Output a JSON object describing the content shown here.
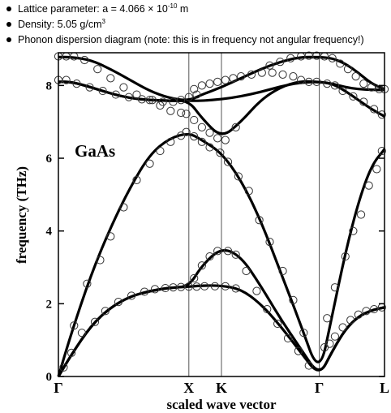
{
  "notes": [
    {
      "text": "Lattice parameter: a = 4.066 × 10",
      "sup": "-10",
      "after": " m"
    },
    {
      "text": "Density: 5.05 g/cm",
      "sup": "3",
      "after": ""
    },
    {
      "text": "Phonon dispersion diagram (note: this is in frequency not angular frequency!)",
      "sup": "",
      "after": ""
    }
  ],
  "chart_data": {
    "type": "line",
    "annotation": "GaAs",
    "xlabel": "scaled wave vector",
    "ylabel": "frequency (THz)",
    "ylim": [
      0,
      8.9
    ],
    "xlim": [
      0,
      2.5
    ],
    "x_ticks": [
      {
        "label": "Γ",
        "x": 0
      },
      {
        "label": "X",
        "x": 1.0
      },
      {
        "label": "K",
        "x": 1.25
      },
      {
        "label": "Γ",
        "x": 2.0
      },
      {
        "label": "L",
        "x": 2.5
      }
    ],
    "y_ticks": [
      0,
      2,
      4,
      6,
      8
    ],
    "vertical_lines_at": [
      1.0,
      1.25,
      2.0
    ],
    "series": [
      {
        "x": [
          0,
          0.1,
          0.25,
          0.4,
          0.55,
          0.7,
          0.85,
          1.0,
          1.1,
          1.25,
          1.4,
          1.55,
          1.7,
          1.85,
          2.0,
          2.1,
          2.2,
          2.3,
          2.4,
          2.5
        ],
        "values": [
          0,
          0.6,
          1.4,
          1.9,
          2.2,
          2.35,
          2.44,
          2.47,
          2.5,
          2.5,
          2.4,
          2.0,
          1.4,
          0.7,
          0,
          0.7,
          1.3,
          1.65,
          1.82,
          1.9
        ]
      },
      {
        "x": [
          0,
          0.1,
          0.25,
          0.4,
          0.55,
          0.7,
          0.85,
          1.0,
          1.1,
          1.25,
          1.4,
          1.55,
          1.7,
          1.85,
          2.0,
          2.1,
          2.2,
          2.3,
          2.4,
          2.5
        ],
        "values": [
          0,
          0.6,
          1.4,
          1.9,
          2.2,
          2.35,
          2.44,
          2.47,
          3.05,
          3.55,
          3.3,
          2.5,
          1.6,
          0.8,
          0,
          0.7,
          1.3,
          1.65,
          1.82,
          1.9
        ]
      },
      {
        "x": [
          0,
          0.1,
          0.25,
          0.4,
          0.55,
          0.7,
          0.85,
          1.0,
          1.1,
          1.25,
          1.4,
          1.55,
          1.7,
          1.85,
          2.0,
          2.1,
          2.2,
          2.3,
          2.4,
          2.5
        ],
        "values": [
          0,
          1.2,
          2.8,
          4.1,
          5.2,
          6.1,
          6.55,
          6.7,
          6.5,
          6.15,
          5.4,
          4.3,
          2.9,
          1.5,
          0,
          1.7,
          3.4,
          4.8,
          5.8,
          6.25
        ]
      },
      {
        "x": [
          0,
          0.1,
          0.25,
          0.4,
          0.55,
          0.7,
          0.85,
          1.0,
          1.1,
          1.25,
          1.4,
          1.55,
          1.7,
          1.85,
          2.0,
          2.1,
          2.2,
          2.3,
          2.4,
          2.5
        ],
        "values": [
          8.1,
          8.1,
          7.95,
          7.78,
          7.65,
          7.6,
          7.58,
          7.58,
          7.1,
          6.55,
          7.0,
          7.6,
          7.95,
          8.12,
          8.1,
          8.05,
          7.95,
          7.9,
          7.88,
          7.88
        ]
      },
      {
        "x": [
          0,
          0.1,
          0.25,
          0.4,
          0.55,
          0.7,
          0.85,
          1.0,
          1.1,
          1.25,
          1.4,
          1.55,
          1.7,
          1.85,
          2.0,
          2.1,
          2.2,
          2.3,
          2.4,
          2.5
        ],
        "values": [
          8.1,
          8.1,
          7.95,
          7.78,
          7.65,
          7.6,
          7.58,
          7.58,
          7.58,
          7.62,
          7.7,
          7.82,
          7.97,
          8.08,
          8.1,
          8.05,
          7.85,
          7.6,
          7.35,
          7.15
        ]
      },
      {
        "x": [
          0,
          0.1,
          0.25,
          0.4,
          0.55,
          0.7,
          0.85,
          1.0,
          1.1,
          1.25,
          1.4,
          1.55,
          1.7,
          1.85,
          2.0,
          2.1,
          2.2,
          2.3,
          2.4,
          2.5
        ],
        "values": [
          8.78,
          8.78,
          8.7,
          8.45,
          8.15,
          7.85,
          7.65,
          7.58,
          7.75,
          7.95,
          8.2,
          8.45,
          8.65,
          8.78,
          8.78,
          8.75,
          8.6,
          8.35,
          8.05,
          7.9
        ]
      }
    ],
    "points": [
      {
        "x": 0.04,
        "y": 0.25
      },
      {
        "x": 0.1,
        "y": 0.65
      },
      {
        "x": 0.18,
        "y": 1.2
      },
      {
        "x": 0.28,
        "y": 1.5
      },
      {
        "x": 0.36,
        "y": 1.8
      },
      {
        "x": 0.46,
        "y": 2.05
      },
      {
        "x": 0.56,
        "y": 2.22
      },
      {
        "x": 0.66,
        "y": 2.33
      },
      {
        "x": 0.74,
        "y": 2.4
      },
      {
        "x": 0.82,
        "y": 2.43
      },
      {
        "x": 0.88,
        "y": 2.45
      },
      {
        "x": 0.94,
        "y": 2.46
      },
      {
        "x": 1.0,
        "y": 2.47
      },
      {
        "x": 1.06,
        "y": 2.47
      },
      {
        "x": 1.12,
        "y": 2.48
      },
      {
        "x": 1.2,
        "y": 2.48
      },
      {
        "x": 1.28,
        "y": 2.48
      },
      {
        "x": 1.36,
        "y": 2.42
      },
      {
        "x": 1.04,
        "y": 2.7
      },
      {
        "x": 1.1,
        "y": 3.05
      },
      {
        "x": 1.16,
        "y": 3.3
      },
      {
        "x": 1.22,
        "y": 3.45
      },
      {
        "x": 1.3,
        "y": 3.45
      },
      {
        "x": 1.36,
        "y": 3.35
      },
      {
        "x": 1.44,
        "y": 2.9
      },
      {
        "x": 1.52,
        "y": 2.35
      },
      {
        "x": 1.6,
        "y": 1.85
      },
      {
        "x": 1.68,
        "y": 1.45
      },
      {
        "x": 1.76,
        "y": 1.05
      },
      {
        "x": 1.84,
        "y": 0.7
      },
      {
        "x": 1.92,
        "y": 0.3
      },
      {
        "x": 0.12,
        "y": 1.4
      },
      {
        "x": 0.22,
        "y": 2.55
      },
      {
        "x": 0.32,
        "y": 3.2
      },
      {
        "x": 0.4,
        "y": 3.85
      },
      {
        "x": 0.5,
        "y": 4.65
      },
      {
        "x": 0.6,
        "y": 5.4
      },
      {
        "x": 0.7,
        "y": 5.85
      },
      {
        "x": 0.78,
        "y": 6.2
      },
      {
        "x": 0.86,
        "y": 6.45
      },
      {
        "x": 0.94,
        "y": 6.62
      },
      {
        "x": 0.98,
        "y": 6.72
      },
      {
        "x": 1.04,
        "y": 6.6
      },
      {
        "x": 1.1,
        "y": 6.45
      },
      {
        "x": 1.16,
        "y": 6.3
      },
      {
        "x": 1.24,
        "y": 6.15
      },
      {
        "x": 1.3,
        "y": 5.9
      },
      {
        "x": 1.38,
        "y": 5.5
      },
      {
        "x": 1.46,
        "y": 5.1
      },
      {
        "x": 1.54,
        "y": 4.3
      },
      {
        "x": 1.62,
        "y": 3.7
      },
      {
        "x": 1.72,
        "y": 2.9
      },
      {
        "x": 1.8,
        "y": 2.1
      },
      {
        "x": 1.88,
        "y": 1.2
      },
      {
        "x": 2.04,
        "y": 0.8
      },
      {
        "x": 2.08,
        "y": 0.9
      },
      {
        "x": 2.12,
        "y": 1.1
      },
      {
        "x": 2.18,
        "y": 1.35
      },
      {
        "x": 2.24,
        "y": 1.55
      },
      {
        "x": 2.3,
        "y": 1.7
      },
      {
        "x": 2.36,
        "y": 1.8
      },
      {
        "x": 2.42,
        "y": 1.85
      },
      {
        "x": 2.48,
        "y": 1.9
      },
      {
        "x": 2.06,
        "y": 1.6
      },
      {
        "x": 2.12,
        "y": 2.45
      },
      {
        "x": 2.2,
        "y": 3.3
      },
      {
        "x": 2.26,
        "y": 4.0
      },
      {
        "x": 2.32,
        "y": 4.45
      },
      {
        "x": 2.38,
        "y": 5.25
      },
      {
        "x": 2.44,
        "y": 5.7
      },
      {
        "x": 2.48,
        "y": 6.2
      },
      {
        "x": 0.0,
        "y": 8.8
      },
      {
        "x": 0.06,
        "y": 8.8
      },
      {
        "x": 0.12,
        "y": 8.8
      },
      {
        "x": 0.2,
        "y": 8.7
      },
      {
        "x": 0.3,
        "y": 8.45
      },
      {
        "x": 0.4,
        "y": 8.2
      },
      {
        "x": 0.5,
        "y": 7.95
      },
      {
        "x": 0.6,
        "y": 7.75
      },
      {
        "x": 0.7,
        "y": 7.6
      },
      {
        "x": 0.78,
        "y": 7.45
      },
      {
        "x": 0.86,
        "y": 7.3
      },
      {
        "x": 0.94,
        "y": 7.25
      },
      {
        "x": 0.98,
        "y": 7.22
      },
      {
        "x": 1.04,
        "y": 7.05
      },
      {
        "x": 1.1,
        "y": 6.85
      },
      {
        "x": 1.16,
        "y": 6.7
      },
      {
        "x": 1.22,
        "y": 6.55
      },
      {
        "x": 1.28,
        "y": 6.5
      },
      {
        "x": 1.36,
        "y": 6.85
      },
      {
        "x": 0.0,
        "y": 8.15
      },
      {
        "x": 0.06,
        "y": 8.15
      },
      {
        "x": 0.14,
        "y": 8.05
      },
      {
        "x": 0.24,
        "y": 7.95
      },
      {
        "x": 0.34,
        "y": 7.85
      },
      {
        "x": 0.44,
        "y": 7.75
      },
      {
        "x": 0.54,
        "y": 7.68
      },
      {
        "x": 0.64,
        "y": 7.62
      },
      {
        "x": 0.72,
        "y": 7.6
      },
      {
        "x": 0.8,
        "y": 7.55
      },
      {
        "x": 0.88,
        "y": 7.55
      },
      {
        "x": 0.94,
        "y": 7.6
      },
      {
        "x": 1.0,
        "y": 7.68
      },
      {
        "x": 1.06,
        "y": 7.75
      },
      {
        "x": 1.04,
        "y": 7.9
      },
      {
        "x": 1.1,
        "y": 8.0
      },
      {
        "x": 1.16,
        "y": 8.05
      },
      {
        "x": 1.22,
        "y": 8.1
      },
      {
        "x": 1.28,
        "y": 8.15
      },
      {
        "x": 1.34,
        "y": 8.2
      },
      {
        "x": 1.4,
        "y": 8.25
      },
      {
        "x": 1.48,
        "y": 8.3
      },
      {
        "x": 1.56,
        "y": 8.35
      },
      {
        "x": 1.64,
        "y": 8.35
      },
      {
        "x": 1.72,
        "y": 8.3
      },
      {
        "x": 1.8,
        "y": 8.25
      },
      {
        "x": 1.86,
        "y": 8.15
      },
      {
        "x": 1.92,
        "y": 8.1
      },
      {
        "x": 1.98,
        "y": 8.1
      },
      {
        "x": 1.62,
        "y": 8.55
      },
      {
        "x": 1.7,
        "y": 8.65
      },
      {
        "x": 1.78,
        "y": 8.75
      },
      {
        "x": 1.86,
        "y": 8.8
      },
      {
        "x": 1.92,
        "y": 8.82
      },
      {
        "x": 1.98,
        "y": 8.82
      },
      {
        "x": 2.04,
        "y": 8.8
      },
      {
        "x": 2.1,
        "y": 8.75
      },
      {
        "x": 2.16,
        "y": 8.6
      },
      {
        "x": 2.22,
        "y": 8.45
      },
      {
        "x": 2.28,
        "y": 8.25
      },
      {
        "x": 2.34,
        "y": 8.05
      },
      {
        "x": 2.4,
        "y": 7.95
      },
      {
        "x": 2.46,
        "y": 7.9
      },
      {
        "x": 2.5,
        "y": 7.9
      },
      {
        "x": 2.06,
        "y": 8.05
      },
      {
        "x": 2.12,
        "y": 8.0
      },
      {
        "x": 2.18,
        "y": 7.85
      },
      {
        "x": 2.26,
        "y": 7.7
      },
      {
        "x": 2.34,
        "y": 7.55
      },
      {
        "x": 2.42,
        "y": 7.35
      },
      {
        "x": 2.48,
        "y": 7.2
      }
    ]
  }
}
